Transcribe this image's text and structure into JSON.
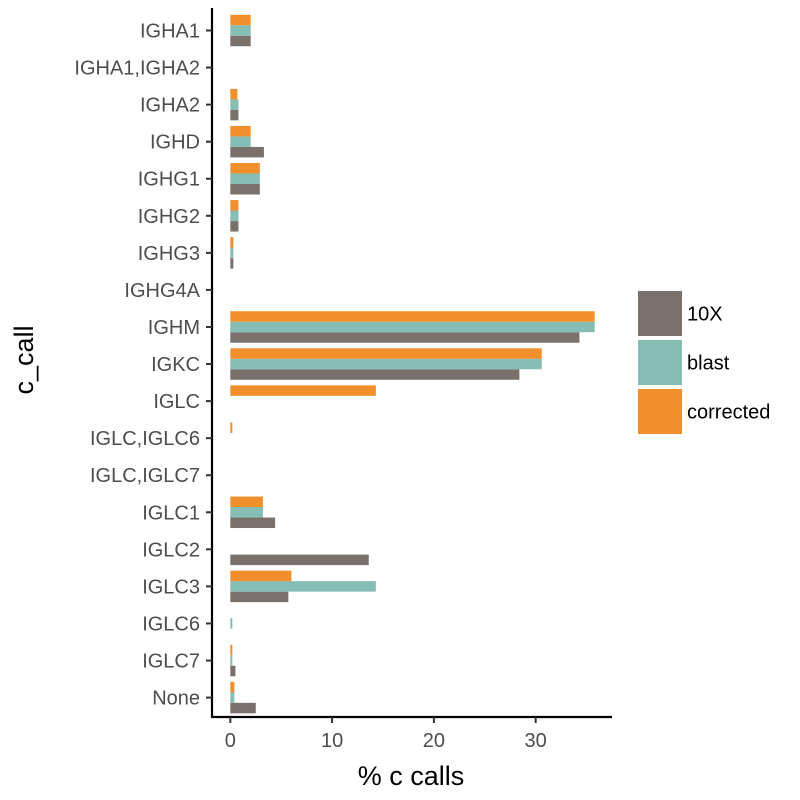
{
  "chart_data": {
    "type": "bar",
    "orientation": "horizontal",
    "title": "",
    "xlabel": "% c calls",
    "ylabel": "c_call",
    "xlim": [
      -1.8,
      37.5
    ],
    "xticks": [
      0,
      10,
      20,
      30
    ],
    "grid": false,
    "legend_position": "right",
    "categories": [
      "IGHA1",
      "IGHA1,IGHA2",
      "IGHA2",
      "IGHD",
      "IGHG1",
      "IGHG2",
      "IGHG3",
      "IGHG4A",
      "IGHM",
      "IGKC",
      "IGLC",
      "IGLC,IGLC6",
      "IGLC,IGLC7",
      "IGLC1",
      "IGLC2",
      "IGLC3",
      "IGLC6",
      "IGLC7",
      "None"
    ],
    "series": [
      {
        "name": "10X",
        "color": "#7a706c",
        "values": [
          2.0,
          0,
          0.8,
          3.3,
          2.9,
          0.8,
          0.3,
          0,
          34.3,
          28.4,
          0,
          0,
          0,
          4.4,
          13.6,
          5.7,
          0,
          0.5,
          2.5
        ]
      },
      {
        "name": "blast",
        "color": "#86bdb4",
        "values": [
          2.0,
          0,
          0.8,
          2.0,
          2.9,
          0.8,
          0.3,
          0,
          35.8,
          30.6,
          0,
          0,
          0,
          3.2,
          0,
          14.3,
          0.2,
          0.2,
          0.4
        ]
      },
      {
        "name": "corrected",
        "color": "#f28f2d",
        "values": [
          2.0,
          0,
          0.7,
          2.0,
          2.9,
          0.8,
          0.3,
          0,
          35.8,
          30.6,
          14.3,
          0.2,
          0,
          3.2,
          0,
          6.0,
          0,
          0.2,
          0.4
        ]
      }
    ]
  }
}
